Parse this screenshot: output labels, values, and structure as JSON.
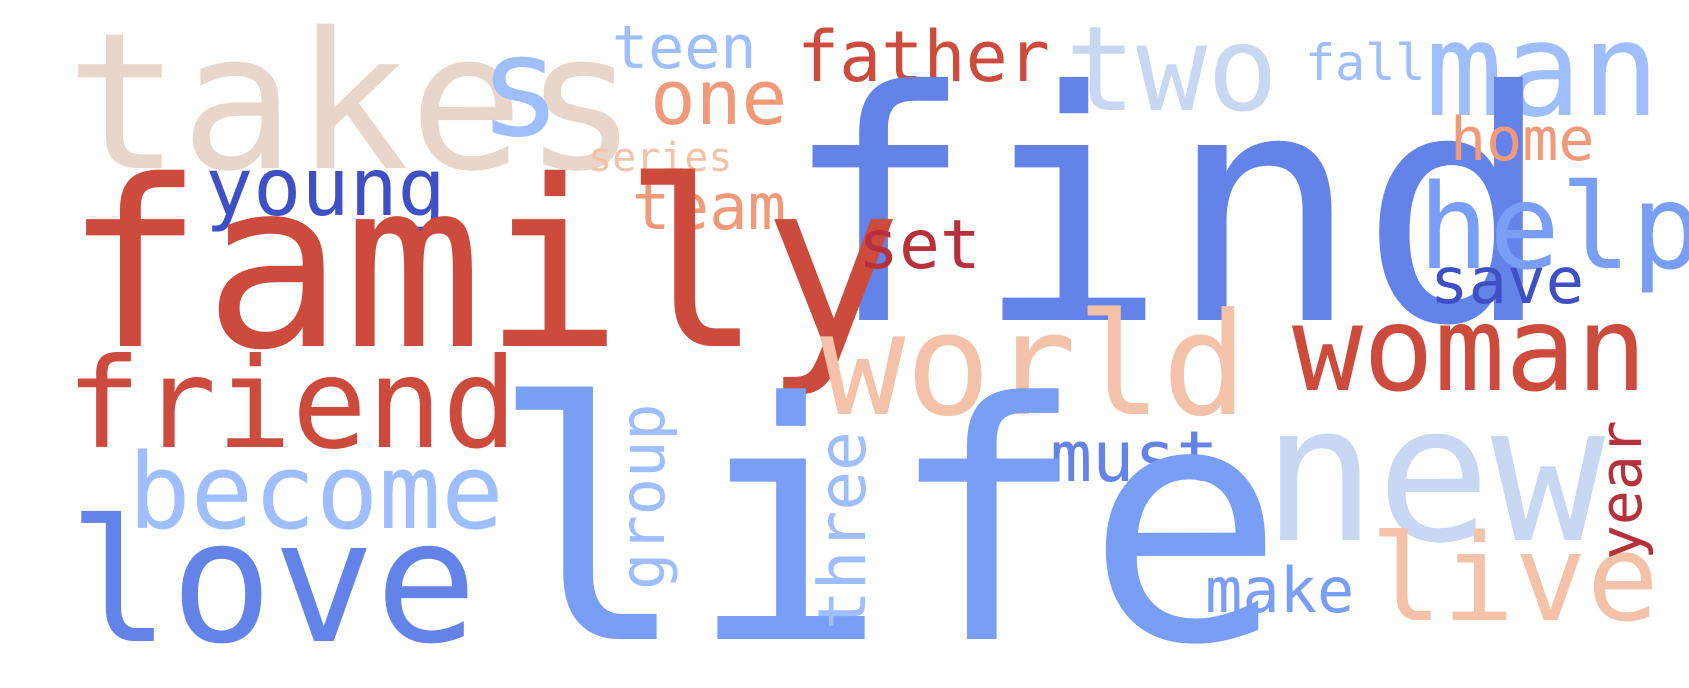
{
  "palette": {
    "dark_blue": "#3f50c4",
    "blue": "#6483e9",
    "mid_blue": "#799ef6",
    "light_blue": "#9ebefd",
    "pale_blue": "#c8d8f2",
    "beige": "#e9d6cb",
    "peach": "#f4c2a8",
    "salmon": "#f19a7a",
    "red": "#cc4b3c",
    "dark_red": "#b6313b"
  },
  "words": {
    "takes": "takes",
    "s": "s",
    "teen": "teen",
    "father": "father",
    "two": "two",
    "fall": "fall",
    "man": "man",
    "one": "one",
    "find": "find",
    "home": "home",
    "series": "series",
    "young": "young",
    "team": "team",
    "help": "help",
    "family": "family",
    "set": "set",
    "save": "save",
    "world": "world",
    "woman": "woman",
    "friend": "friend",
    "group": "group",
    "year": "year",
    "must": "must",
    "three": "three",
    "new": "new",
    "become": "become",
    "love": "love",
    "life": "life",
    "make": "make",
    "live": "live"
  }
}
